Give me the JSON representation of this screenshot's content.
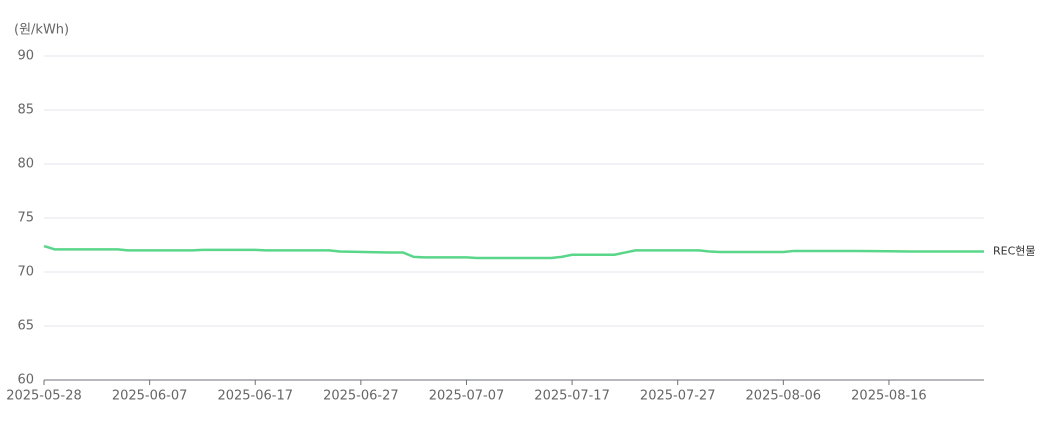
{
  "chart_data": {
    "type": "line",
    "y_label": "(원/kWh)",
    "x": [
      "2025-05-28",
      "2025-05-29",
      "2025-06-04",
      "2025-06-05",
      "2025-06-11",
      "2025-06-12",
      "2025-06-17",
      "2025-06-18",
      "2025-06-24",
      "2025-06-25",
      "2025-06-30",
      "2025-07-01",
      "2025-07-02",
      "2025-07-03",
      "2025-07-07",
      "2025-07-08",
      "2025-07-14",
      "2025-07-15",
      "2025-07-16",
      "2025-07-17",
      "2025-07-21",
      "2025-07-22",
      "2025-07-23",
      "2025-07-29",
      "2025-07-30",
      "2025-07-31",
      "2025-08-06",
      "2025-08-07",
      "2025-08-13",
      "2025-08-18",
      "2025-08-25"
    ],
    "series": [
      {
        "name": "REC현물",
        "color": "#5ad68a",
        "values": [
          72.4,
          72.1,
          72.1,
          72.0,
          72.0,
          72.05,
          72.05,
          72.0,
          72.0,
          71.9,
          71.8,
          71.8,
          71.4,
          71.35,
          71.35,
          71.3,
          71.3,
          71.3,
          71.4,
          71.6,
          71.6,
          71.8,
          72.0,
          72.0,
          71.9,
          71.85,
          71.85,
          71.95,
          71.95,
          71.9,
          71.9
        ]
      }
    ],
    "xlim": [
      "2025-05-28",
      "2025-08-25"
    ],
    "xticks": [
      "2025-05-28",
      "2025-06-07",
      "2025-06-17",
      "2025-06-27",
      "2025-07-07",
      "2025-07-17",
      "2025-07-27",
      "2025-08-06",
      "2025-08-16"
    ],
    "ylim": [
      60,
      90
    ],
    "yticks": [
      60,
      65,
      70,
      75,
      80,
      85,
      90
    ],
    "grid": true
  }
}
